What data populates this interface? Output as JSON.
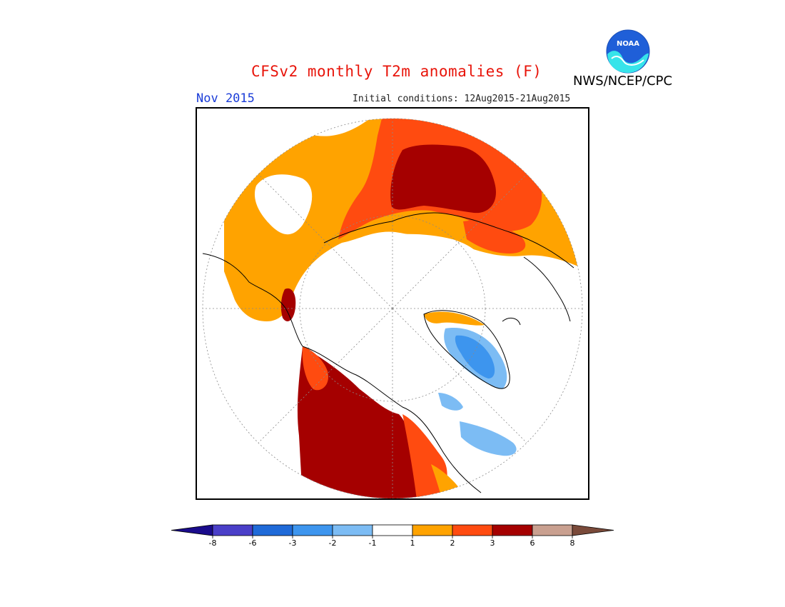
{
  "title": "CFSv2 monthly T2m anomalies (F)",
  "agency": "NWS/NCEP/CPC",
  "logo_text": "NOAA",
  "month_label": "Nov 2015",
  "initial_conditions": "Initial conditions: 12Aug2015-21Aug2015",
  "colorbar": {
    "ticks": [
      "-8",
      "-6",
      "-3",
      "-2",
      "-1",
      "1",
      "2",
      "3",
      "6",
      "8"
    ],
    "colors": [
      "#1a0b8c",
      "#4a3fc8",
      "#1f6ad8",
      "#3d95ee",
      "#7cbcf4",
      "#ffffff",
      "#ffa300",
      "#ff4b10",
      "#a50000",
      "#c9a090",
      "#7a4a3a"
    ]
  }
}
